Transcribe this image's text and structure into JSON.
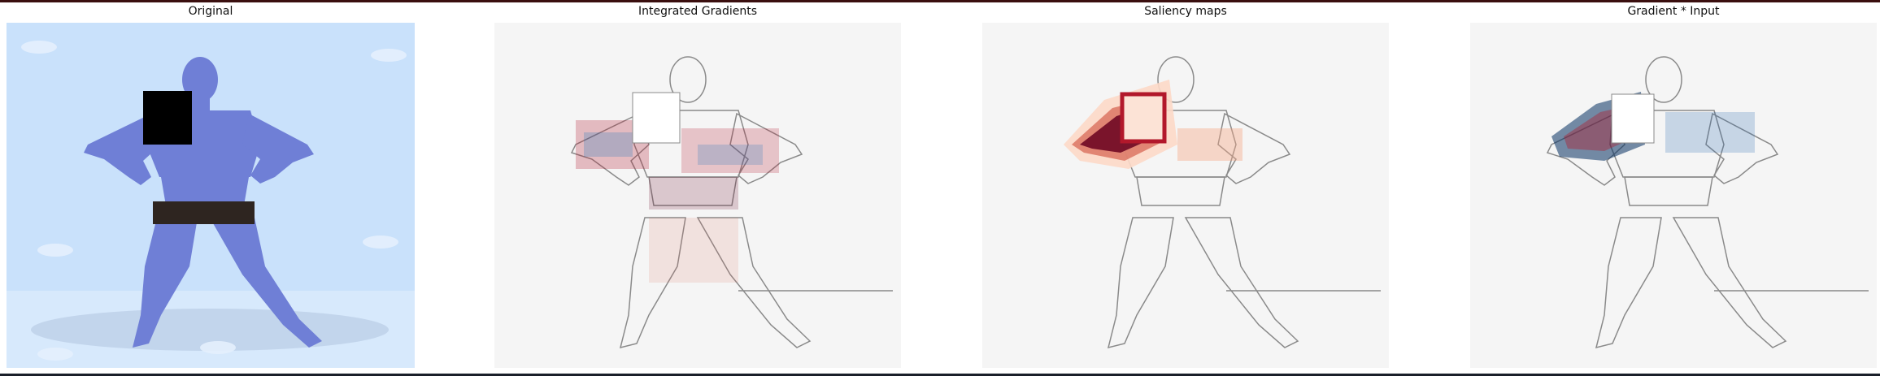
{
  "panels": [
    {
      "title": "Original"
    },
    {
      "title": "Integrated Gradients"
    },
    {
      "title": "Saliency maps"
    },
    {
      "title": "Gradient * Input"
    }
  ],
  "colors": {
    "original_bg": "#c9e1fb",
    "figure": "#6f7fd6",
    "shorts": "#2e2520",
    "redact": "#000000",
    "heat_bg": "#f5f5f5",
    "heat_red": "#67001f",
    "heat_blue": "#053061",
    "outline": "#8a8a8a"
  }
}
